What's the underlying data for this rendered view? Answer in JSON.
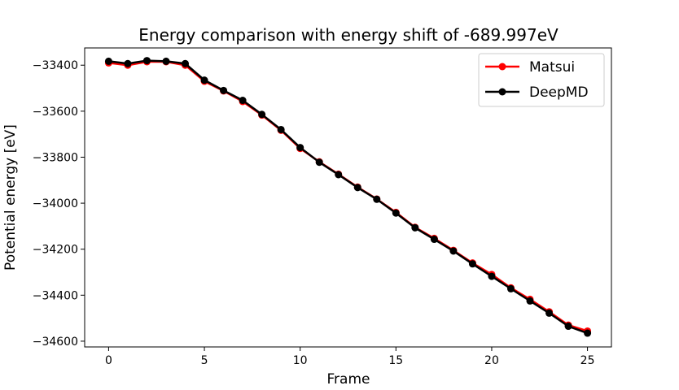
{
  "chart_data": {
    "type": "line",
    "title": "Energy comparison with energy shift of -689.997eV",
    "xlabel": "Frame",
    "ylabel": "Potential energy [eV]",
    "xlim": [
      -1.25,
      26.25
    ],
    "ylim": [
      -34625,
      -33325
    ],
    "x_ticks": [
      0,
      5,
      10,
      15,
      20,
      25
    ],
    "y_ticks": [
      -33400,
      -33600,
      -33800,
      -34000,
      -34200,
      -34400,
      -34600
    ],
    "x_tick_labels": [
      "0",
      "5",
      "10",
      "15",
      "20",
      "25"
    ],
    "y_tick_labels": [
      "−33400",
      "−33600",
      "−33800",
      "−34000",
      "−34200",
      "−34400",
      "−34600"
    ],
    "legend_position": "top-right",
    "grid": false,
    "x": [
      0,
      1,
      2,
      3,
      4,
      5,
      6,
      7,
      8,
      9,
      10,
      11,
      12,
      13,
      14,
      15,
      16,
      17,
      18,
      19,
      20,
      21,
      22,
      23,
      24,
      25
    ],
    "series": [
      {
        "name": "Matsui",
        "color": "#ff0000",
        "values": [
          -33390,
          -33400,
          -33385,
          -33385,
          -33400,
          -33470,
          -33512,
          -33558,
          -33617,
          -33683,
          -33762,
          -33820,
          -33874,
          -33930,
          -33982,
          -34040,
          -34105,
          -34153,
          -34205,
          -34260,
          -34310,
          -34368,
          -34418,
          -34472,
          -34530,
          -34556
        ]
      },
      {
        "name": "DeepMD",
        "color": "#000000",
        "values": [
          -33383,
          -33393,
          -33380,
          -33383,
          -33393,
          -33465,
          -33510,
          -33553,
          -33614,
          -33680,
          -33758,
          -33822,
          -33876,
          -33932,
          -33983,
          -34043,
          -34107,
          -34157,
          -34208,
          -34264,
          -34318,
          -34372,
          -34425,
          -34478,
          -34535,
          -34565
        ]
      }
    ]
  }
}
